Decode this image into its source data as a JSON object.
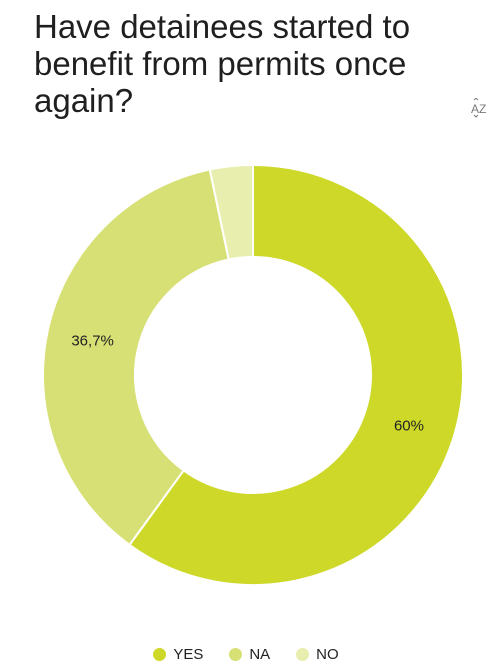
{
  "chart_data": {
    "type": "pie",
    "title": "Have detainees started to benefit from permits once again?",
    "categories": [
      "YES",
      "NA",
      "NO"
    ],
    "values": [
      60,
      36.7,
      3.3
    ],
    "data_labels": [
      "60%",
      "36,7%",
      ""
    ],
    "colors": [
      "#cdd829",
      "#d7e074",
      "#e8eeae"
    ],
    "donut": true,
    "legend_position": "bottom"
  },
  "sort_icon": "sort-az-icon"
}
